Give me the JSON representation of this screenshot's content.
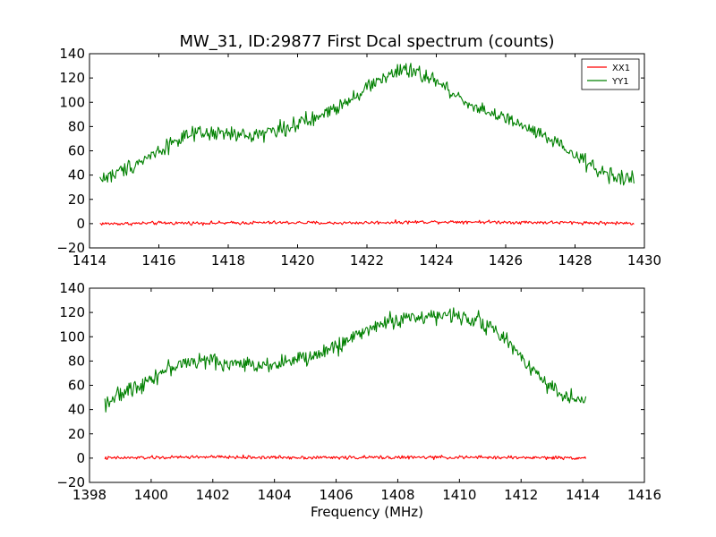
{
  "figure": {
    "title": "MW_31, ID:29877 First Dcal spectrum (counts)",
    "xlabel": "Frequency (MHz)"
  },
  "chart_data": [
    {
      "type": "line",
      "title": "MW_31, ID:29877 First Dcal spectrum (counts)",
      "xlabel": "",
      "ylabel": "",
      "xlim": [
        1414,
        1430
      ],
      "ylim": [
        -20,
        140
      ],
      "xticks": [
        1414,
        1416,
        1418,
        1420,
        1422,
        1424,
        1426,
        1428,
        1430
      ],
      "yticks": [
        -20,
        0,
        20,
        40,
        60,
        80,
        100,
        120,
        140
      ],
      "grid": false,
      "legend": "top-right",
      "legend_entries": [
        "XX1",
        "YY1"
      ],
      "series": [
        {
          "name": "XX1",
          "color": "#ff0000",
          "x": [
            1414.3,
            1415.0,
            1416.0,
            1417.0,
            1418.0,
            1419.0,
            1420.0,
            1421.0,
            1422.0,
            1423.0,
            1424.0,
            1425.0,
            1426.0,
            1427.0,
            1428.0,
            1429.0,
            1429.7
          ],
          "y": [
            0,
            0,
            0.5,
            0.5,
            0.5,
            0.8,
            0.8,
            0.5,
            0.8,
            1.2,
            1.5,
            1.5,
            1.2,
            1.0,
            0.8,
            0.5,
            0.3
          ]
        },
        {
          "name": "YY1",
          "color": "#008000",
          "x": [
            1414.3,
            1414.7,
            1415.0,
            1415.5,
            1416.0,
            1416.5,
            1417.0,
            1417.5,
            1418.0,
            1418.5,
            1419.0,
            1419.5,
            1420.0,
            1420.5,
            1421.0,
            1421.5,
            1422.0,
            1422.5,
            1423.0,
            1423.5,
            1424.0,
            1424.5,
            1425.0,
            1425.5,
            1426.0,
            1426.5,
            1427.0,
            1427.5,
            1428.0,
            1428.5,
            1429.0,
            1429.7
          ],
          "y": [
            37,
            40,
            45,
            52,
            60,
            69,
            73,
            74,
            74,
            72,
            75,
            78,
            82,
            86,
            94,
            103,
            112,
            121,
            126,
            124,
            117,
            107,
            98,
            92,
            86,
            80,
            73,
            65,
            56,
            47,
            40,
            36
          ]
        }
      ]
    },
    {
      "type": "line",
      "title": "",
      "xlabel": "Frequency (MHz)",
      "ylabel": "",
      "xlim": [
        1398,
        1416
      ],
      "ylim": [
        -20,
        140
      ],
      "xticks": [
        1398,
        1400,
        1402,
        1404,
        1406,
        1408,
        1410,
        1412,
        1414,
        1416
      ],
      "yticks": [
        -20,
        0,
        20,
        40,
        60,
        80,
        100,
        120,
        140
      ],
      "grid": false,
      "legend": "none",
      "series": [
        {
          "name": "XX1",
          "color": "#ff0000",
          "x": [
            1398.5,
            1399.5,
            1400.5,
            1401.5,
            1402.5,
            1403.5,
            1404.5,
            1405.5,
            1406.5,
            1407.5,
            1408.5,
            1409.5,
            1410.5,
            1411.5,
            1412.5,
            1413.5,
            1414.1
          ],
          "y": [
            0,
            0.3,
            0.5,
            1.0,
            0.8,
            0.6,
            0.6,
            0.5,
            0.5,
            0.6,
            0.6,
            0.6,
            0.6,
            0.5,
            0.4,
            0.3,
            0.2
          ]
        },
        {
          "name": "YY1",
          "color": "#008000",
          "x": [
            1398.5,
            1399.0,
            1399.5,
            1400.0,
            1400.5,
            1401.0,
            1401.5,
            1402.0,
            1402.5,
            1403.0,
            1403.5,
            1404.0,
            1404.5,
            1405.0,
            1405.5,
            1406.0,
            1406.5,
            1407.0,
            1407.5,
            1408.0,
            1408.5,
            1409.0,
            1409.5,
            1410.0,
            1410.5,
            1411.0,
            1411.5,
            1412.0,
            1412.5,
            1413.0,
            1413.5,
            1414.1
          ],
          "y": [
            46,
            52,
            59,
            66,
            73,
            78,
            80,
            80,
            78,
            77,
            77,
            78,
            80,
            82,
            86,
            92,
            99,
            106,
            111,
            114,
            116,
            117,
            117,
            117,
            115,
            108,
            97,
            84,
            70,
            58,
            50,
            47
          ]
        }
      ]
    }
  ]
}
